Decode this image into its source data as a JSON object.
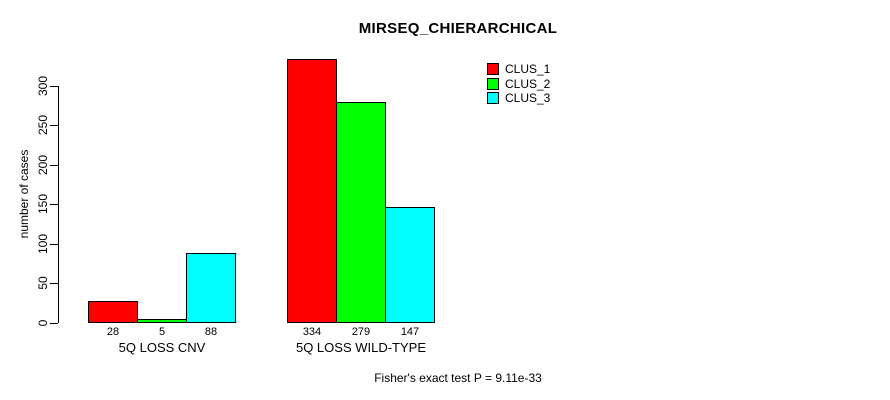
{
  "title": "MIRSEQ_CHIERARCHICAL",
  "caption": "Fisher's exact test P = 9.11e-33",
  "chart_data": {
    "type": "bar",
    "title": "MIRSEQ_CHIERARCHICAL",
    "xlabel": "",
    "ylabel": "number of cases",
    "ylim": [
      0,
      340
    ],
    "yticks": [
      0,
      50,
      100,
      150,
      200,
      250,
      300
    ],
    "grid": false,
    "legend_position": "top-right",
    "categories": [
      "5Q LOSS CNV",
      "5Q LOSS WILD-TYPE"
    ],
    "series": [
      {
        "name": "CLUS_1",
        "color": "#ff0000",
        "values": [
          28,
          334
        ]
      },
      {
        "name": "CLUS_2",
        "color": "#00ff00",
        "values": [
          5,
          279
        ]
      },
      {
        "name": "CLUS_3",
        "color": "#00ffff",
        "values": [
          88,
          147
        ]
      }
    ],
    "annotation": "Fisher's exact test P = 9.11e-33"
  }
}
